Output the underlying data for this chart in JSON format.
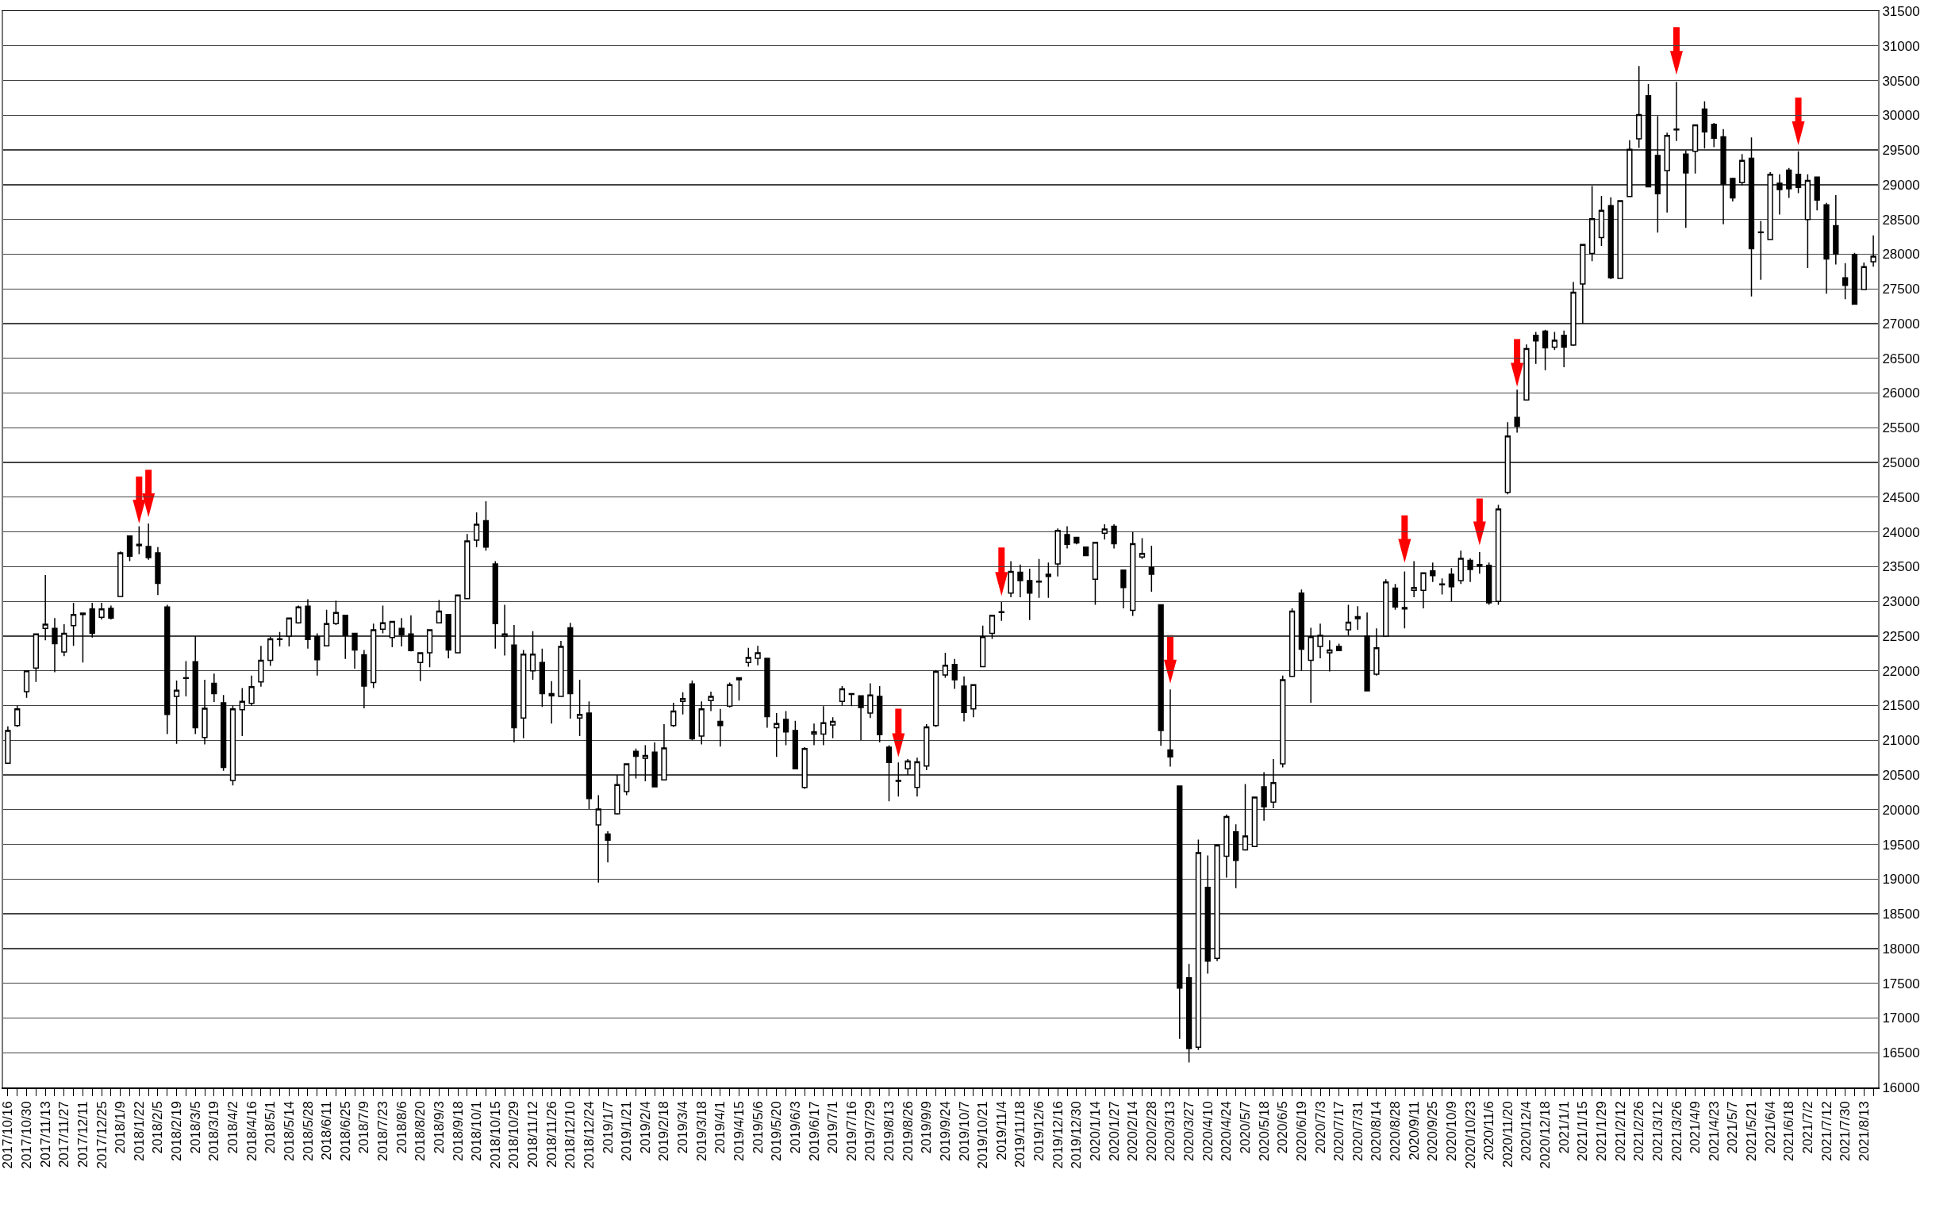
{
  "chart_data": {
    "type": "candlestick",
    "categories": [
      "2017/10/16",
      null,
      "2017/10/30",
      null,
      "2017/11/13",
      null,
      "2017/11/27",
      null,
      "2017/12/11",
      null,
      "2017/12/25",
      null,
      "2018/1/9",
      null,
      "2018/1/22",
      null,
      "2018/2/5",
      null,
      "2018/2/19",
      null,
      "2018/3/5",
      null,
      "2018/3/19",
      null,
      "2018/4/2",
      null,
      "2018/4/16",
      null,
      "2018/5/1",
      null,
      "2018/5/14",
      null,
      "2018/5/28",
      null,
      "2018/6/11",
      null,
      "2018/6/25",
      null,
      "2018/7/9",
      null,
      "2018/7/23",
      null,
      "2018/8/6",
      null,
      "2018/8/20",
      null,
      "2018/9/3",
      null,
      "2018/9/18",
      null,
      "2018/10/1",
      null,
      "2018/10/15",
      null,
      "2018/10/29",
      null,
      "2018/11/12",
      null,
      "2018/11/26",
      null,
      "2018/12/10",
      null,
      "2018/12/24",
      null,
      "2019/1/7",
      null,
      "2019/1/21",
      null,
      "2019/2/4",
      null,
      "2019/2/18",
      null,
      "2019/3/4",
      null,
      "2019/3/18",
      null,
      "2019/4/1",
      null,
      "2019/4/15",
      null,
      "2019/5/6",
      null,
      "2019/5/20",
      null,
      "2019/6/3",
      null,
      "2019/6/17",
      null,
      "2019/7/1",
      null,
      "2019/7/16",
      null,
      "2019/7/29",
      null,
      "2019/8/13",
      null,
      "2019/8/26",
      null,
      "2019/9/9",
      null,
      "2019/9/24",
      null,
      "2019/10/7",
      null,
      "2019/10/21",
      null,
      "2019/11/4",
      null,
      "2019/11/18",
      null,
      "2019/12/6",
      null,
      "2019/12/16",
      null,
      "2019/12/30",
      null,
      "2020/1/14",
      null,
      "2020/1/27",
      null,
      "2020/2/14",
      null,
      "2020/2/28",
      null,
      "2020/3/13",
      null,
      "2020/3/27",
      null,
      "2020/4/10",
      null,
      "2020/4/24",
      null,
      "2020/5/7",
      null,
      "2020/5/18",
      null,
      "2020/6/5",
      null,
      "2020/6/19",
      null,
      "2020/7/3",
      null,
      "2020/7/17",
      null,
      "2020/7/31",
      null,
      "2020/8/14",
      null,
      "2020/8/28",
      null,
      "2020/9/11",
      null,
      "2020/9/25",
      null,
      "2020/10/9",
      null,
      "2020/10/23",
      null,
      "2020/11/6",
      null,
      "2020/11/20",
      null,
      "2020/12/4",
      null,
      "2020/12/18",
      null,
      "2021/1/1",
      null,
      "2021/1/15",
      null,
      "2021/1/29",
      null,
      "2021/2/12",
      null,
      "2021/2/26",
      null,
      "2021/3/12",
      null,
      "2021/3/26",
      null,
      "2021/4/9",
      null,
      "2021/4/23",
      null,
      "2021/5/7",
      null,
      "2021/5/21",
      null,
      "2021/6/4",
      null,
      "2021/6/18",
      null,
      "2021/7/2",
      null,
      "2021/7/12",
      null,
      "2021/7/30",
      null,
      "2021/8/13",
      null
    ],
    "ohlc": [
      [
        20670,
        21200,
        20670,
        21140
      ],
      [
        21210,
        21500,
        21190,
        21450
      ],
      [
        21700,
        22000,
        21610,
        22000
      ],
      [
        22040,
        22530,
        21840,
        22530
      ],
      [
        22610,
        23380,
        22440,
        22670
      ],
      [
        22610,
        22760,
        21980,
        22390
      ],
      [
        22270,
        22670,
        22210,
        22540
      ],
      [
        22650,
        22980,
        22360,
        22810
      ],
      [
        22830,
        22830,
        22120,
        22810
      ],
      [
        22890,
        22980,
        22480,
        22540
      ],
      [
        22770,
        22980,
        22740,
        22890
      ],
      [
        22900,
        22940,
        22740,
        22760
      ],
      [
        23070,
        23720,
        23070,
        23700
      ],
      [
        23940,
        23940,
        23580,
        23650
      ],
      [
        23800,
        24080,
        23680,
        23820
      ],
      [
        23790,
        24120,
        23600,
        23630
      ],
      [
        23700,
        23780,
        23090,
        23260
      ],
      [
        22920,
        22950,
        21090,
        21370
      ],
      [
        21630,
        21860,
        20950,
        21720
      ],
      [
        21890,
        22140,
        21630,
        21900
      ],
      [
        22130,
        22500,
        21090,
        21180
      ],
      [
        21040,
        21870,
        20940,
        21460
      ],
      [
        21820,
        21960,
        21550,
        21670
      ],
      [
        21540,
        21650,
        20560,
        20610
      ],
      [
        20420,
        21500,
        20350,
        21450
      ],
      [
        21440,
        21750,
        21060,
        21560
      ],
      [
        21530,
        21930,
        21500,
        21770
      ],
      [
        21840,
        22360,
        21770,
        22150
      ],
      [
        22150,
        22490,
        22070,
        22460
      ],
      [
        22450,
        22560,
        22350,
        22460
      ],
      [
        22500,
        22760,
        22350,
        22760
      ],
      [
        22690,
        22940,
        22680,
        22920
      ],
      [
        22930,
        23030,
        22320,
        22450
      ],
      [
        22490,
        22540,
        21930,
        22160
      ],
      [
        22360,
        22880,
        22350,
        22680
      ],
      [
        22680,
        23010,
        22660,
        22840
      ],
      [
        22800,
        22800,
        22170,
        22510
      ],
      [
        22540,
        22540,
        22030,
        22300
      ],
      [
        22230,
        22300,
        21460,
        21780
      ],
      [
        21830,
        22680,
        21750,
        22590
      ],
      [
        22600,
        22940,
        22540,
        22690
      ],
      [
        22480,
        22710,
        22340,
        22710
      ],
      [
        22610,
        22760,
        22350,
        22520
      ],
      [
        22530,
        22800,
        22280,
        22290
      ],
      [
        22120,
        22260,
        21850,
        22260
      ],
      [
        22260,
        22590,
        22050,
        22590
      ],
      [
        22690,
        23020,
        22690,
        22860
      ],
      [
        22810,
        22810,
        22180,
        22300
      ],
      [
        22260,
        23090,
        22260,
        23090
      ],
      [
        23040,
        23970,
        23040,
        23870
      ],
      [
        23880,
        24280,
        23780,
        24110
      ],
      [
        24160,
        24440,
        23730,
        23780
      ],
      [
        23540,
        23580,
        22320,
        22680
      ],
      [
        22500,
        22950,
        22220,
        22530
      ],
      [
        22370,
        22660,
        20970,
        21180
      ],
      [
        21320,
        22300,
        21030,
        22240
      ],
      [
        22000,
        22570,
        21870,
        22240
      ],
      [
        22120,
        22320,
        21480,
        21670
      ],
      [
        21670,
        21850,
        21240,
        21640
      ],
      [
        21630,
        22430,
        21630,
        22350
      ],
      [
        22620,
        22690,
        21310,
        21670
      ],
      [
        21320,
        21870,
        21060,
        21370
      ],
      [
        21390,
        21560,
        20010,
        20160
      ],
      [
        19780,
        20210,
        18950,
        20010
      ],
      [
        19650,
        19690,
        19240,
        19560
      ],
      [
        19940,
        20500,
        19930,
        20360
      ],
      [
        20260,
        20660,
        20210,
        20660
      ],
      [
        20840,
        20880,
        20450,
        20770
      ],
      [
        20740,
        20930,
        20410,
        20780
      ],
      [
        20830,
        20970,
        20320,
        20330
      ],
      [
        20430,
        21230,
        20430,
        20890
      ],
      [
        21210,
        21540,
        21190,
        21420
      ],
      [
        21560,
        21690,
        21370,
        21600
      ],
      [
        21810,
        21860,
        21000,
        21020
      ],
      [
        21060,
        21560,
        20940,
        21450
      ],
      [
        21570,
        21700,
        21420,
        21630
      ],
      [
        21270,
        21450,
        20910,
        21210
      ],
      [
        21490,
        21830,
        21470,
        21800
      ],
      [
        21900,
        21900,
        21570,
        21870
      ],
      [
        22120,
        22330,
        22060,
        22190
      ],
      [
        22180,
        22360,
        22080,
        22260
      ],
      [
        22180,
        22180,
        21180,
        21340
      ],
      [
        21180,
        21390,
        20760,
        21240
      ],
      [
        21300,
        21420,
        20930,
        21120
      ],
      [
        21140,
        21280,
        20590,
        20590
      ],
      [
        20320,
        20900,
        20300,
        20880
      ],
      [
        21090,
        21240,
        20930,
        21120
      ],
      [
        21090,
        21490,
        20930,
        21250
      ],
      [
        21220,
        21330,
        21030,
        21270
      ],
      [
        21560,
        21780,
        21500,
        21740
      ],
      [
        21670,
        21680,
        21490,
        21660
      ],
      [
        21640,
        21640,
        21000,
        21470
      ],
      [
        21390,
        21820,
        21320,
        21650
      ],
      [
        21630,
        21780,
        20970,
        21080
      ],
      [
        20900,
        20930,
        20120,
        20680
      ],
      [
        20420,
        20680,
        20190,
        20410
      ],
      [
        20590,
        20730,
        20500,
        20700
      ],
      [
        20320,
        20750,
        20190,
        20690
      ],
      [
        20630,
        21230,
        20570,
        21190
      ],
      [
        21210,
        22010,
        21190,
        21990
      ],
      [
        21940,
        22260,
        21900,
        22080
      ],
      [
        22090,
        22170,
        21740,
        21870
      ],
      [
        21780,
        21920,
        21270,
        21400
      ],
      [
        21450,
        21800,
        21330,
        21800
      ],
      [
        22060,
        22650,
        22060,
        22490
      ],
      [
        22540,
        22800,
        22460,
        22800
      ],
      [
        22840,
        22990,
        22720,
        22850
      ],
      [
        23120,
        23580,
        23060,
        23430
      ],
      [
        23420,
        23530,
        23060,
        23300
      ],
      [
        23300,
        23470,
        22730,
        23120
      ],
      [
        23290,
        23610,
        23050,
        23280
      ],
      [
        23390,
        23560,
        23050,
        23360
      ],
      [
        23540,
        24050,
        23360,
        24020
      ],
      [
        23960,
        24080,
        23760,
        23820
      ],
      [
        23920,
        23930,
        23820,
        23840
      ],
      [
        23780,
        23780,
        23650,
        23660
      ],
      [
        23320,
        23850,
        22950,
        23850
      ],
      [
        23980,
        24110,
        23890,
        24040
      ],
      [
        24080,
        24110,
        23760,
        23830
      ],
      [
        23450,
        23450,
        22900,
        23200
      ],
      [
        22870,
        24000,
        22790,
        23830
      ],
      [
        23640,
        23910,
        23610,
        23690
      ],
      [
        23490,
        23800,
        23140,
        23390
      ],
      [
        22950,
        22950,
        20920,
        21140
      ],
      [
        20860,
        21730,
        20620,
        20760
      ],
      [
        20340,
        20340,
        16700,
        17430
      ],
      [
        17580,
        17780,
        16360,
        16560
      ],
      [
        16580,
        19570,
        16540,
        19380
      ],
      [
        18880,
        19340,
        17640,
        17820
      ],
      [
        17860,
        19500,
        17820,
        19490
      ],
      [
        19330,
        19930,
        19020,
        19900
      ],
      [
        19680,
        19790,
        18870,
        19270
      ],
      [
        19420,
        20370,
        19410,
        19620
      ],
      [
        19470,
        20180,
        19460,
        20180
      ],
      [
        20330,
        20540,
        19840,
        20040
      ],
      [
        20110,
        20730,
        20020,
        20390
      ],
      [
        20660,
        21930,
        20610,
        21870
      ],
      [
        21920,
        22900,
        21920,
        22860
      ],
      [
        23120,
        23170,
        22000,
        22310
      ],
      [
        22150,
        22620,
        21540,
        22490
      ],
      [
        22350,
        22680,
        22180,
        22510
      ],
      [
        22260,
        22440,
        21990,
        22300
      ],
      [
        22350,
        22390,
        22290,
        22290
      ],
      [
        22590,
        22950,
        22510,
        22700
      ],
      [
        22780,
        22930,
        22590,
        22750
      ],
      [
        22500,
        22840,
        21710,
        21710
      ],
      [
        21950,
        22610,
        21930,
        22330
      ],
      [
        22500,
        23320,
        22500,
        23280
      ],
      [
        23190,
        23250,
        22880,
        22920
      ],
      [
        22910,
        23430,
        22610,
        22890
      ],
      [
        23160,
        23580,
        23060,
        23200
      ],
      [
        23160,
        23420,
        22900,
        23410
      ],
      [
        23440,
        23560,
        23280,
        23370
      ],
      [
        23250,
        23330,
        23100,
        23240
      ],
      [
        23390,
        23480,
        23000,
        23210
      ],
      [
        23300,
        23730,
        23250,
        23620
      ],
      [
        23590,
        23620,
        23280,
        23460
      ],
      [
        23510,
        23710,
        23400,
        23530
      ],
      [
        23520,
        23560,
        22950,
        22980
      ],
      [
        23000,
        24390,
        22950,
        24330
      ],
      [
        24570,
        25580,
        24540,
        25380
      ],
      [
        25650,
        26050,
        25430,
        25520
      ],
      [
        25900,
        26700,
        25900,
        26640
      ],
      [
        26830,
        26880,
        26420,
        26750
      ],
      [
        26890,
        26910,
        26330,
        26650
      ],
      [
        26660,
        26880,
        26620,
        26760
      ],
      [
        26830,
        26900,
        26370,
        26660
      ],
      [
        26690,
        27600,
        26680,
        27450
      ],
      [
        27570,
        28140,
        27000,
        28140
      ],
      [
        28010,
        28980,
        27900,
        28510
      ],
      [
        28240,
        28840,
        28120,
        28630
      ],
      [
        28700,
        28820,
        27640,
        27660
      ],
      [
        27650,
        28770,
        27650,
        28770
      ],
      [
        28830,
        29640,
        28830,
        29510
      ],
      [
        29660,
        30710,
        29530,
        30010
      ],
      [
        30280,
        30450,
        28970,
        28970
      ],
      [
        29420,
        29990,
        28310,
        28870
      ],
      [
        29200,
        29750,
        28600,
        29710
      ],
      [
        29790,
        30480,
        29630,
        29800
      ],
      [
        29440,
        29490,
        28380,
        29170
      ],
      [
        29480,
        29860,
        29160,
        29860
      ],
      [
        30090,
        30200,
        29520,
        29760
      ],
      [
        29870,
        29890,
        29540,
        29670
      ],
      [
        29690,
        29800,
        28430,
        29010
      ],
      [
        29090,
        29100,
        28760,
        28810
      ],
      [
        29030,
        29440,
        28990,
        29350
      ],
      [
        29380,
        29680,
        27390,
        28080
      ],
      [
        28320,
        28480,
        27630,
        28310
      ],
      [
        28210,
        29180,
        28210,
        29150
      ],
      [
        29020,
        29150,
        28570,
        28930
      ],
      [
        29210,
        29240,
        28810,
        28940
      ],
      [
        29150,
        29480,
        28880,
        28960
      ],
      [
        28500,
        29150,
        27800,
        29060
      ],
      [
        29110,
        29110,
        28630,
        28780
      ],
      [
        28710,
        28740,
        27430,
        27930
      ],
      [
        28410,
        28850,
        27850,
        28000
      ],
      [
        27660,
        27870,
        27350,
        27550
      ],
      [
        27990,
        28020,
        27280,
        27280
      ],
      [
        27490,
        27880,
        27490,
        27820
      ],
      [
        27890,
        28270,
        27820,
        27970
      ]
    ],
    "ylim": [
      16000,
      31500
    ],
    "yticks": [
      16000,
      16500,
      17000,
      17500,
      18000,
      18500,
      19000,
      19500,
      20000,
      20500,
      21000,
      21500,
      22000,
      22500,
      23000,
      23500,
      24000,
      24500,
      25000,
      25500,
      26000,
      26500,
      27000,
      27500,
      28000,
      28500,
      29000,
      29500,
      30000,
      30500,
      31000,
      31500
    ],
    "grid": "y"
  }
}
